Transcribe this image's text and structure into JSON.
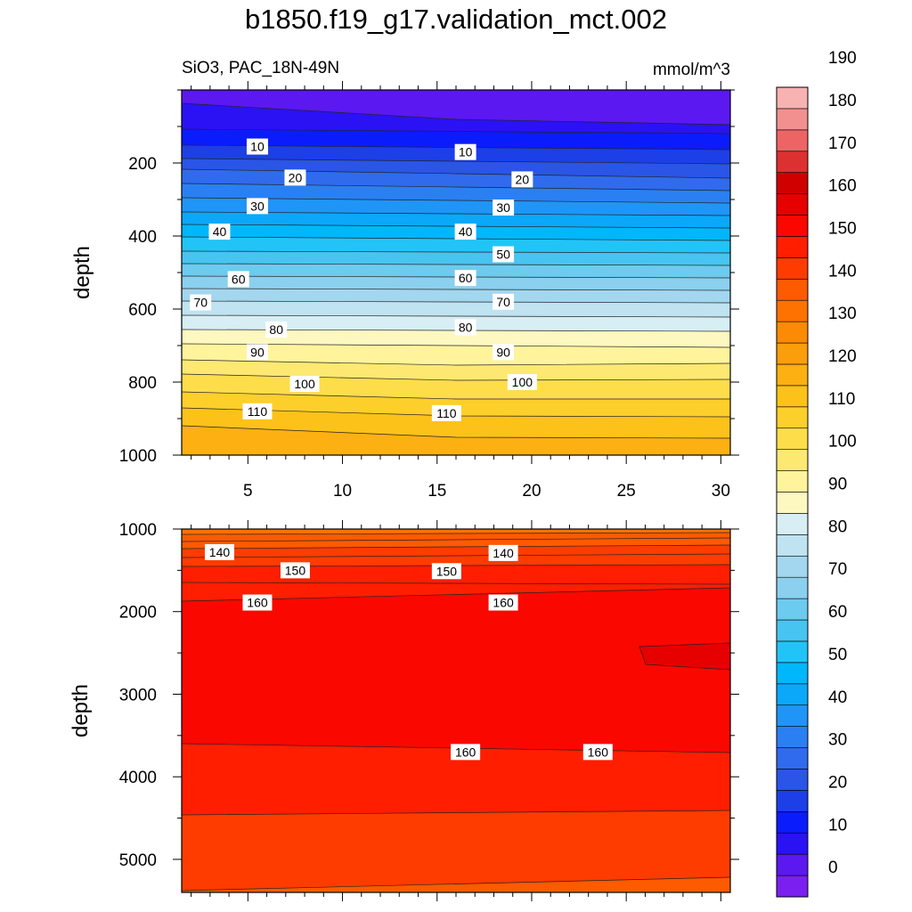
{
  "title": "b1850.f19_g17.validation_mct.002",
  "subtitle_left": "SiO3, PAC_18N-49N",
  "subtitle_right": "mmol/m^3",
  "colorbar": {
    "levels": [
      "0",
      "10",
      "20",
      "30",
      "40",
      "50",
      "60",
      "70",
      "80",
      "90",
      "100",
      "110",
      "120",
      "130",
      "140",
      "150",
      "160",
      "170",
      "180",
      "190"
    ],
    "colors": [
      "#7a1ff0",
      "#5b18f0",
      "#2a12f5",
      "#0b1cfc",
      "#1c3fe8",
      "#2a55e6",
      "#2f6bec",
      "#2a80f2",
      "#1f95f7",
      "#0ba8fa",
      "#00b7fb",
      "#22c4f7",
      "#48c4f0",
      "#6ccbee",
      "#8bd0ee",
      "#a3d6ef",
      "#bfe3f1",
      "#d7eef4",
      "#fdf8c0",
      "#fff49c",
      "#fde872",
      "#fedd4b",
      "#fdcf2a",
      "#fcc21a",
      "#fcb012",
      "#fb9e0b",
      "#fc8a05",
      "#fd7200",
      "#fe5a00",
      "#ff3c00",
      "#ff1e00",
      "#fa0800",
      "#e60000",
      "#d00000",
      "#dd3131",
      "#ee6464",
      "#f29090",
      "#f7b2b2"
    ]
  },
  "chart_data": [
    {
      "type": "heatmap",
      "panel": "upper",
      "xlabel": "",
      "ylabel": "depth",
      "xlim": [
        1.5,
        30.5
      ],
      "ylim": [
        1000,
        0
      ],
      "xticks": [
        5,
        10,
        15,
        20,
        25,
        30
      ],
      "yticks": [
        200,
        400,
        600,
        800,
        1000
      ],
      "contour_labels": [
        {
          "x": 5.5,
          "depth": 155,
          "label": "10"
        },
        {
          "x": 16.5,
          "depth": 170,
          "label": "10"
        },
        {
          "x": 7.5,
          "depth": 240,
          "label": "20"
        },
        {
          "x": 19.5,
          "depth": 245,
          "label": "20"
        },
        {
          "x": 5.5,
          "depth": 318,
          "label": "30"
        },
        {
          "x": 18.5,
          "depth": 322,
          "label": "30"
        },
        {
          "x": 3.5,
          "depth": 388,
          "label": "40"
        },
        {
          "x": 16.5,
          "depth": 388,
          "label": "40"
        },
        {
          "x": 18.5,
          "depth": 450,
          "label": "50"
        },
        {
          "x": 4.5,
          "depth": 518,
          "label": "60"
        },
        {
          "x": 16.5,
          "depth": 515,
          "label": "60"
        },
        {
          "x": 2.5,
          "depth": 582,
          "label": "70"
        },
        {
          "x": 18.5,
          "depth": 580,
          "label": "70"
        },
        {
          "x": 6.5,
          "depth": 656,
          "label": "80"
        },
        {
          "x": 16.5,
          "depth": 650,
          "label": "80"
        },
        {
          "x": 5.5,
          "depth": 718,
          "label": "90"
        },
        {
          "x": 18.5,
          "depth": 718,
          "label": "90"
        },
        {
          "x": 8.0,
          "depth": 805,
          "label": "100"
        },
        {
          "x": 19.5,
          "depth": 800,
          "label": "100"
        },
        {
          "x": 5.5,
          "depth": 880,
          "label": "110"
        },
        {
          "x": 15.5,
          "depth": 885,
          "label": "110"
        }
      ]
    },
    {
      "type": "heatmap",
      "panel": "lower",
      "xlabel": "",
      "ylabel": "depth",
      "xlim": [
        1.5,
        30.5
      ],
      "ylim": [
        5400,
        1000
      ],
      "yticks": [
        1000,
        2000,
        3000,
        4000,
        5000
      ],
      "contour_labels": [
        {
          "x": 3.5,
          "depth": 1280,
          "label": "140"
        },
        {
          "x": 18.5,
          "depth": 1290,
          "label": "140"
        },
        {
          "x": 7.5,
          "depth": 1500,
          "label": "150"
        },
        {
          "x": 15.5,
          "depth": 1510,
          "label": "150"
        },
        {
          "x": 5.5,
          "depth": 1890,
          "label": "160"
        },
        {
          "x": 18.5,
          "depth": 1890,
          "label": "160"
        },
        {
          "x": 16.5,
          "depth": 3700,
          "label": "160"
        },
        {
          "x": 23.5,
          "depth": 3700,
          "label": "160"
        }
      ]
    }
  ]
}
